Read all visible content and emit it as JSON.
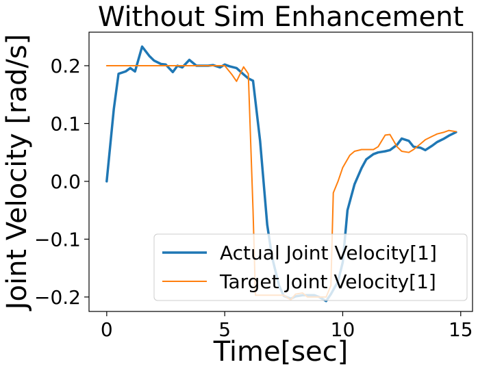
{
  "chart_data": {
    "type": "line",
    "title": "Without Sim Enhancement",
    "xlabel": "Time[sec]",
    "ylabel": "Joint Velocity [rad/s]",
    "xlim": [
      -0.75,
      15.5
    ],
    "ylim": [
      -0.225,
      0.258
    ],
    "x_ticks": [
      0,
      5,
      10,
      15
    ],
    "x_tick_labels": [
      "0",
      "5",
      "10",
      "15"
    ],
    "y_ticks": [
      -0.2,
      -0.1,
      0.0,
      0.1,
      0.2
    ],
    "y_tick_labels": [
      "−0.2",
      "−0.1",
      "0.0",
      "0.1",
      "0.2"
    ],
    "grid": false,
    "legend_position": "lower-right",
    "series": [
      {
        "name": "Actual Joint Velocity[1]",
        "color": "#1f77b4",
        "x": [
          0.0,
          0.3,
          0.5,
          0.8,
          1.0,
          1.2,
          1.5,
          1.8,
          2.0,
          2.3,
          2.5,
          2.8,
          3.0,
          3.2,
          3.5,
          3.8,
          4.0,
          4.3,
          4.5,
          4.8,
          5.0,
          5.2,
          5.5,
          5.8,
          6.0,
          6.2,
          6.5,
          6.8,
          7.0,
          7.3,
          7.5,
          7.8,
          8.0,
          8.3,
          8.5,
          8.8,
          9.0,
          9.3,
          9.5,
          9.8,
          10.0,
          10.2,
          10.5,
          10.8,
          11.0,
          11.3,
          11.5,
          11.8,
          12.0,
          12.3,
          12.5,
          12.8,
          13.0,
          13.3,
          13.5,
          13.8,
          14.0,
          14.3,
          14.5,
          14.8
        ],
        "y": [
          0.0,
          0.125,
          0.186,
          0.19,
          0.196,
          0.19,
          0.233,
          0.217,
          0.209,
          0.203,
          0.202,
          0.189,
          0.2,
          0.197,
          0.21,
          0.2,
          0.2,
          0.2,
          0.201,
          0.197,
          0.202,
          0.199,
          0.196,
          0.185,
          0.178,
          0.174,
          0.07,
          -0.075,
          -0.13,
          -0.18,
          -0.198,
          -0.203,
          -0.199,
          -0.197,
          -0.197,
          -0.197,
          -0.2,
          -0.207,
          -0.195,
          -0.173,
          -0.14,
          -0.05,
          -0.005,
          0.023,
          0.038,
          0.047,
          0.05,
          0.052,
          0.054,
          0.063,
          0.074,
          0.07,
          0.06,
          0.058,
          0.054,
          0.062,
          0.068,
          0.074,
          0.079,
          0.085
        ]
      },
      {
        "name": "Target Joint Velocity[1]",
        "color": "#ff7f0e",
        "x": [
          0.0,
          1.0,
          2.0,
          3.0,
          4.0,
          4.5,
          5.0,
          5.3,
          5.5,
          5.8,
          6.0,
          6.2,
          6.3,
          6.5,
          7.0,
          7.5,
          7.8,
          8.0,
          8.3,
          8.5,
          9.0,
          9.3,
          9.5,
          9.6,
          9.8,
          10.0,
          10.3,
          10.5,
          10.8,
          11.0,
          11.3,
          11.5,
          11.8,
          12.0,
          12.3,
          12.5,
          12.8,
          13.0,
          13.3,
          13.5,
          13.8,
          14.0,
          14.3,
          14.5,
          14.8
        ],
        "y": [
          0.2,
          0.2,
          0.2,
          0.2,
          0.2,
          0.2,
          0.2,
          0.185,
          0.173,
          0.198,
          0.186,
          -0.05,
          -0.197,
          -0.197,
          -0.197,
          -0.197,
          -0.205,
          -0.195,
          -0.193,
          -0.2,
          -0.2,
          -0.2,
          -0.18,
          -0.02,
          0.0,
          0.024,
          0.045,
          0.052,
          0.055,
          0.055,
          0.055,
          0.06,
          0.08,
          0.081,
          0.06,
          0.052,
          0.05,
          0.055,
          0.065,
          0.072,
          0.078,
          0.082,
          0.085,
          0.088,
          0.086
        ]
      }
    ]
  }
}
